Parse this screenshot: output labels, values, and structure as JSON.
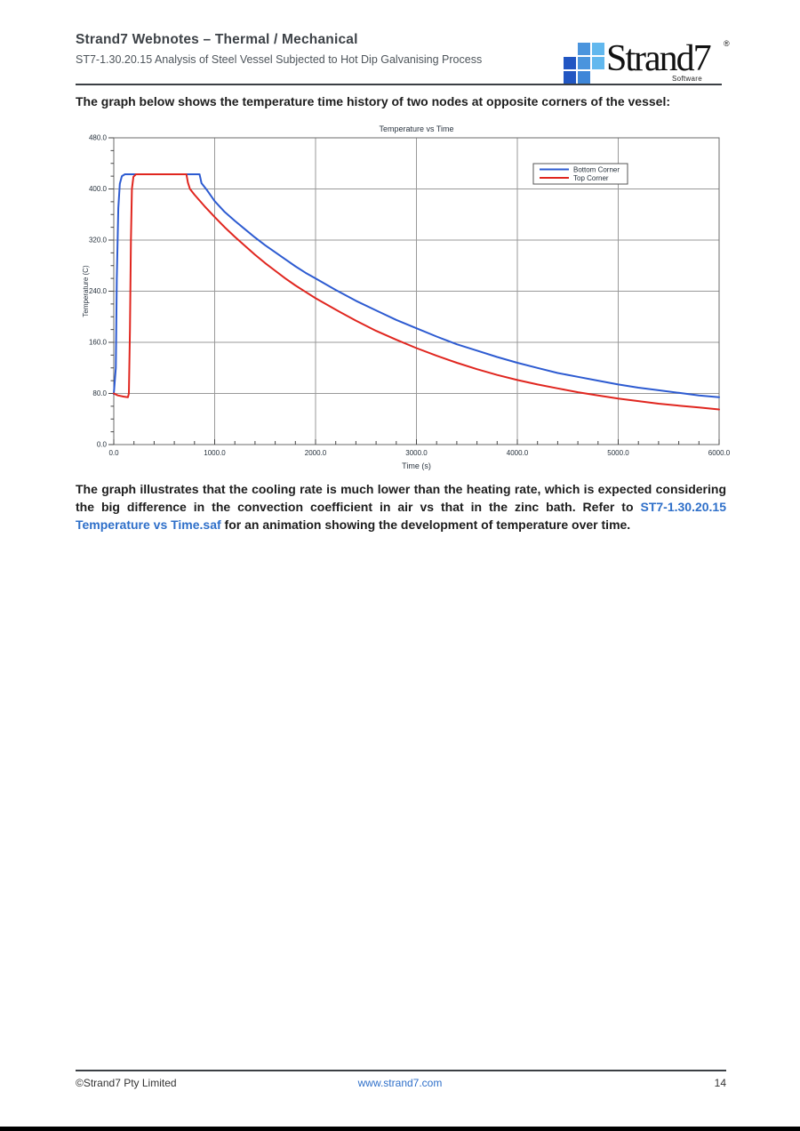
{
  "header": {
    "title": "Strand7 Webnotes – Thermal / Mechanical",
    "subtitle": "ST7-1.30.20.15 Analysis of Steel Vessel Subjected to Hot Dip Galvanising Process"
  },
  "logo": {
    "brand": "Strand7",
    "sub_label": "Software",
    "registered_mark": "®",
    "squares": [
      {
        "row": 0,
        "col": 1,
        "color": "#4a94dd"
      },
      {
        "row": 0,
        "col": 2,
        "color": "#62b8ee"
      },
      {
        "row": 1,
        "col": 0,
        "color": "#2156c2"
      },
      {
        "row": 1,
        "col": 1,
        "color": "#4a94dd"
      },
      {
        "row": 1,
        "col": 2,
        "color": "#62b8ee"
      },
      {
        "row": 2,
        "col": 0,
        "color": "#2156c2"
      },
      {
        "row": 2,
        "col": 1,
        "color": "#3e86d8"
      }
    ]
  },
  "intro_paragraph": "The graph below shows the temperature time history of two nodes at opposite corners of the vessel:",
  "chart_data": {
    "type": "line",
    "title": "Temperature vs Time",
    "xlabel": "Time (s)",
    "ylabel": "Temperature (C)",
    "xlim": [
      0,
      6000
    ],
    "ylim": [
      0,
      480
    ],
    "grid": true,
    "legend_position": "top-right",
    "x_major_ticks": [
      0,
      1000,
      2000,
      3000,
      4000,
      5000,
      6000
    ],
    "x_tick_labels": [
      "0.0",
      "1000.0",
      "2000.0",
      "3000.0",
      "4000.0",
      "5000.0",
      "6000.0"
    ],
    "x_minor_step": 200,
    "y_major_ticks": [
      0,
      80,
      160,
      240,
      320,
      400,
      480
    ],
    "y_tick_labels": [
      "0.0",
      "80.0",
      "160.0",
      "240.0",
      "320.0",
      "400.0",
      "480.0"
    ],
    "y_minor_step": 20,
    "series": [
      {
        "name": "Bottom Corner",
        "color": "#2d5bd1",
        "points": [
          [
            0,
            79
          ],
          [
            20,
            120
          ],
          [
            30,
            260
          ],
          [
            45,
            370
          ],
          [
            60,
            408
          ],
          [
            80,
            420
          ],
          [
            110,
            423
          ],
          [
            850,
            423
          ],
          [
            870,
            409
          ],
          [
            920,
            399
          ],
          [
            1000,
            381
          ],
          [
            1100,
            364
          ],
          [
            1200,
            350
          ],
          [
            1300,
            337
          ],
          [
            1400,
            324
          ],
          [
            1500,
            312
          ],
          [
            1600,
            301
          ],
          [
            1700,
            290
          ],
          [
            1800,
            279
          ],
          [
            1900,
            269
          ],
          [
            2000,
            260
          ],
          [
            2200,
            242
          ],
          [
            2400,
            225
          ],
          [
            2600,
            210
          ],
          [
            2800,
            195
          ],
          [
            3000,
            182
          ],
          [
            3200,
            169
          ],
          [
            3400,
            157
          ],
          [
            3600,
            147
          ],
          [
            3800,
            137
          ],
          [
            4000,
            128
          ],
          [
            4200,
            120
          ],
          [
            4400,
            112
          ],
          [
            4600,
            106
          ],
          [
            4800,
            100
          ],
          [
            5000,
            94
          ],
          [
            5200,
            89
          ],
          [
            5400,
            85
          ],
          [
            5600,
            81
          ],
          [
            5800,
            77
          ],
          [
            6000,
            74
          ]
        ]
      },
      {
        "name": "Top Corner",
        "color": "#e0261f",
        "points": [
          [
            0,
            80
          ],
          [
            40,
            77
          ],
          [
            100,
            75
          ],
          [
            140,
            74
          ],
          [
            150,
            80
          ],
          [
            160,
            180
          ],
          [
            170,
            320
          ],
          [
            180,
            400
          ],
          [
            195,
            419
          ],
          [
            220,
            423
          ],
          [
            720,
            423
          ],
          [
            735,
            410
          ],
          [
            755,
            400
          ],
          [
            800,
            391
          ],
          [
            900,
            373
          ],
          [
            1000,
            356
          ],
          [
            1100,
            340
          ],
          [
            1200,
            325
          ],
          [
            1300,
            311
          ],
          [
            1400,
            297
          ],
          [
            1500,
            284
          ],
          [
            1600,
            272
          ],
          [
            1700,
            260
          ],
          [
            1800,
            249
          ],
          [
            1900,
            239
          ],
          [
            2000,
            229
          ],
          [
            2200,
            211
          ],
          [
            2400,
            194
          ],
          [
            2600,
            178
          ],
          [
            2800,
            164
          ],
          [
            3000,
            151
          ],
          [
            3200,
            139
          ],
          [
            3400,
            128
          ],
          [
            3600,
            118
          ],
          [
            3800,
            109
          ],
          [
            4000,
            101
          ],
          [
            4200,
            94
          ],
          [
            4400,
            88
          ],
          [
            4600,
            82
          ],
          [
            4800,
            77
          ],
          [
            5000,
            72
          ],
          [
            5200,
            68
          ],
          [
            5400,
            64
          ],
          [
            5600,
            61
          ],
          [
            5800,
            58
          ],
          [
            6000,
            55
          ]
        ]
      }
    ]
  },
  "body_paragraph": {
    "before_link": "The graph illustrates that the cooling rate is much lower than the heating rate, which is expected considering the big difference in the convection coefficient in air vs that in the zinc bath.  Refer to ",
    "link_text": "ST7-1.30.20.15 Temperature vs Time.saf",
    "after_link": " for an animation showing the development of temperature over time."
  },
  "footer": {
    "copyright": "©Strand7 Pty Limited",
    "website": "www.strand7.com",
    "page_number": "14"
  },
  "colors": {
    "link_blue": "#2e6fc9",
    "grid_gray": "#999999",
    "plot_border": "#6b6b6b",
    "tick_text": "#26313c"
  }
}
